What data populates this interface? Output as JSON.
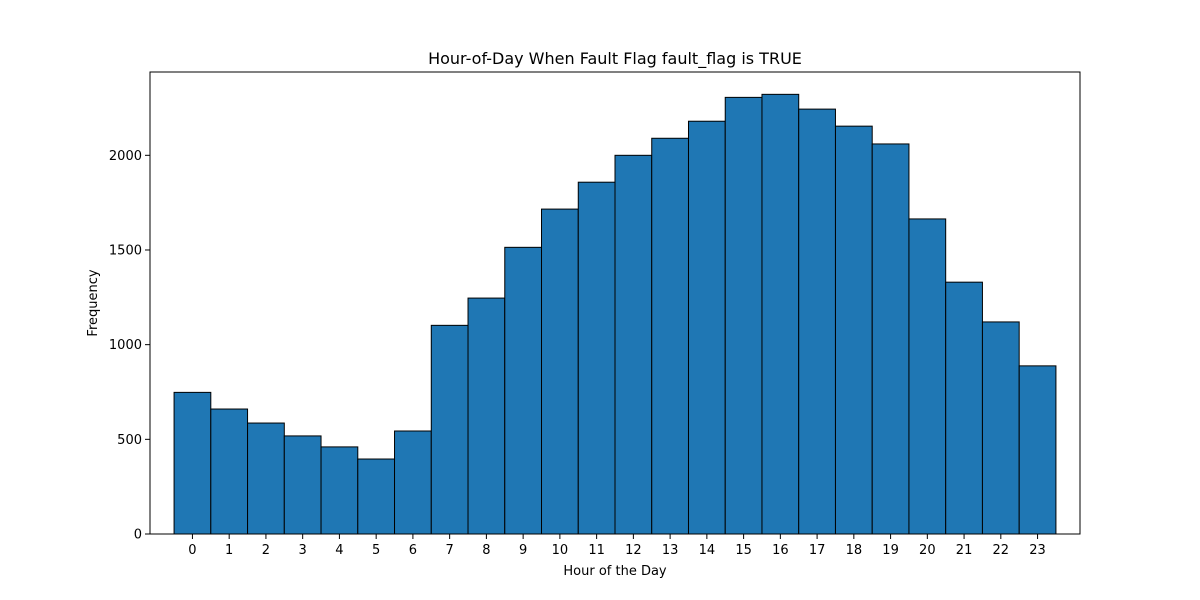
{
  "chart_data": {
    "type": "bar",
    "title": "Hour-of-Day When Fault Flag fault_flag is TRUE",
    "xlabel": "Hour of the Day",
    "ylabel": "Frequency",
    "categories": [
      "0",
      "1",
      "2",
      "3",
      "4",
      "5",
      "6",
      "7",
      "8",
      "9",
      "10",
      "11",
      "12",
      "13",
      "14",
      "15",
      "16",
      "17",
      "18",
      "19",
      "20",
      "21",
      "22",
      "23"
    ],
    "values": [
      748,
      660,
      586,
      518,
      460,
      396,
      544,
      1102,
      1246,
      1514,
      1716,
      1858,
      2000,
      2090,
      2180,
      2306,
      2322,
      2244,
      2154,
      2060,
      1664,
      1330,
      1120,
      888
    ],
    "ylim": [
      0,
      2440
    ],
    "yticks": [
      0,
      500,
      1000,
      1500,
      2000
    ],
    "ytick_labels": [
      "0",
      "500",
      "1000",
      "1500",
      "2000"
    ],
    "grid": false,
    "legend": "none",
    "bar_color": "#1f77b4",
    "edge_color": "#000000"
  }
}
